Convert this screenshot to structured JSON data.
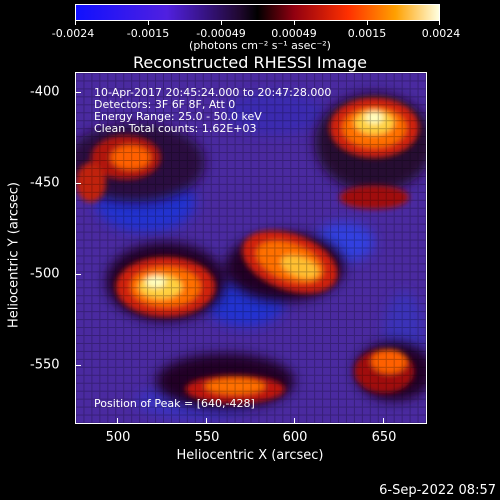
{
  "colorbar": {
    "ticks": [
      "-0.0024",
      "-0.0015",
      "-0.00049",
      "0.00049",
      "0.0015",
      "0.0024"
    ],
    "units": "(photons cm⁻² s⁻¹ asec⁻²)"
  },
  "plot": {
    "title": "Reconstructed RHESSI Image",
    "xlabel": "Heliocentric X (arcsec)",
    "ylabel": "Heliocentric Y (arcsec)",
    "xticks": [
      "500",
      "550",
      "600",
      "650"
    ],
    "yticks": [
      "-400",
      "-450",
      "-500",
      "-550"
    ],
    "info": [
      "10-Apr-2017 20:45:24.000 to 20:47:28.000",
      "Detectors: 3F 6F 8F, Att 0",
      "Energy Range: 25.0 - 50.0 keV",
      "Clean    Total counts: 1.62E+03"
    ],
    "peak": "Position of Peak = [640,-428]"
  },
  "footer": {
    "date": "6-Sep-2022 08:57"
  }
}
